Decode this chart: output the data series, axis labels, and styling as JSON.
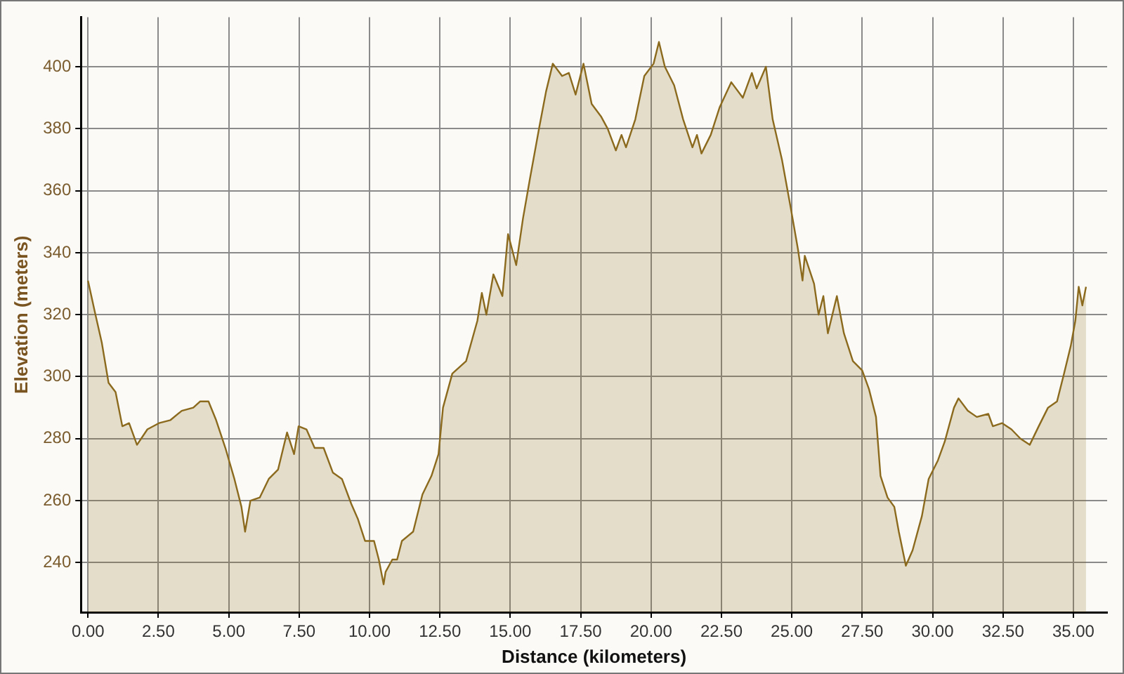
{
  "chart_data": {
    "type": "area",
    "xlabel": "Distance (kilometers)",
    "ylabel": "Elevation (meters)",
    "xlim": [
      -0.25,
      36.2
    ],
    "ylim": [
      224,
      416
    ],
    "xticks": [
      {
        "value": 0,
        "label": "0.00"
      },
      {
        "value": 2.5,
        "label": "2.50"
      },
      {
        "value": 5,
        "label": "5.00"
      },
      {
        "value": 7.5,
        "label": "7.50"
      },
      {
        "value": 10,
        "label": "10.00"
      },
      {
        "value": 12.5,
        "label": "12.50"
      },
      {
        "value": 15,
        "label": "15.00"
      },
      {
        "value": 17.5,
        "label": "17.50"
      },
      {
        "value": 20,
        "label": "20.00"
      },
      {
        "value": 22.5,
        "label": "22.50"
      },
      {
        "value": 25,
        "label": "25.00"
      },
      {
        "value": 27.5,
        "label": "27.50"
      },
      {
        "value": 30,
        "label": "30.00"
      },
      {
        "value": 32.5,
        "label": "32.50"
      },
      {
        "value": 35,
        "label": "35.00"
      }
    ],
    "yticks": [
      240,
      260,
      280,
      300,
      320,
      340,
      360,
      380,
      400
    ],
    "grid": true,
    "legend": false,
    "marker": "none",
    "series": [
      {
        "color": "#8b6a1e",
        "x": [
          0,
          0.24,
          0.49,
          0.73,
          0.98,
          1.22,
          1.46,
          1.74,
          2.11,
          2.52,
          2.93,
          3.33,
          3.74,
          3.98,
          4.28,
          4.55,
          4.88,
          5.2,
          5.45,
          5.58,
          5.77,
          6.1,
          6.42,
          6.75,
          7.07,
          7.32,
          7.48,
          7.76,
          8.05,
          8.37,
          8.7,
          9.02,
          9.35,
          9.59,
          9.84,
          10.16,
          10.33,
          10.5,
          10.57,
          10.81,
          10.98,
          11.15,
          11.55,
          11.88,
          12.2,
          12.45,
          12.61,
          12.94,
          13.43,
          13.83,
          13.99,
          14.15,
          14.4,
          14.72,
          14.92,
          15.21,
          15.45,
          15.7,
          16.02,
          16.27,
          16.51,
          16.84,
          17.08,
          17.32,
          17.6,
          17.89,
          18.22,
          18.46,
          18.75,
          18.95,
          19.11,
          19.44,
          19.76,
          20.09,
          20.28,
          20.49,
          20.82,
          21.14,
          21.47,
          21.63,
          21.79,
          22.12,
          22.44,
          22.85,
          23.26,
          23.58,
          23.75,
          24.08,
          24.32,
          24.65,
          24.97,
          25.22,
          25.38,
          25.46,
          25.79,
          25.95,
          26.12,
          26.28,
          26.44,
          26.6,
          26.85,
          27.17,
          27.5,
          27.74,
          27.99,
          28.15,
          28.4,
          28.64,
          28.8,
          29.05,
          29.29,
          29.62,
          29.86,
          30.19,
          30.43,
          30.76,
          30.92,
          31.25,
          31.57,
          31.98,
          32.14,
          32.47,
          32.8,
          33.12,
          33.45,
          33.77,
          34.1,
          34.42,
          34.67,
          34.91,
          35.07,
          35.19,
          35.32,
          35.45
        ],
        "values": [
          331,
          321,
          311,
          298,
          295,
          284,
          285,
          278,
          283,
          285,
          286,
          289,
          290,
          292,
          292,
          286,
          277,
          267,
          258,
          250,
          260,
          261,
          267,
          270,
          282,
          275,
          284,
          283,
          277,
          277,
          269,
          267,
          259,
          254,
          247,
          247,
          241,
          233,
          237,
          241,
          241,
          247,
          250,
          262,
          268,
          275,
          290,
          301,
          305,
          318,
          327,
          320,
          333,
          326,
          346,
          336,
          351,
          364,
          380,
          392,
          401,
          397,
          398,
          391,
          401,
          388,
          384,
          380,
          373,
          378,
          374,
          383,
          397,
          401,
          408,
          400,
          394,
          383,
          374,
          378,
          372,
          378,
          387,
          395,
          390,
          398,
          393,
          400,
          383,
          370,
          354,
          341,
          331,
          339,
          330,
          320,
          326,
          314,
          320,
          326,
          314,
          305,
          302,
          296,
          287,
          268,
          261,
          258,
          250,
          239,
          244,
          255,
          267,
          273,
          279,
          290,
          293,
          289,
          287,
          288,
          284,
          285,
          283,
          280,
          278,
          284,
          290,
          292,
          301,
          310,
          318,
          329,
          323,
          329
        ]
      }
    ]
  }
}
